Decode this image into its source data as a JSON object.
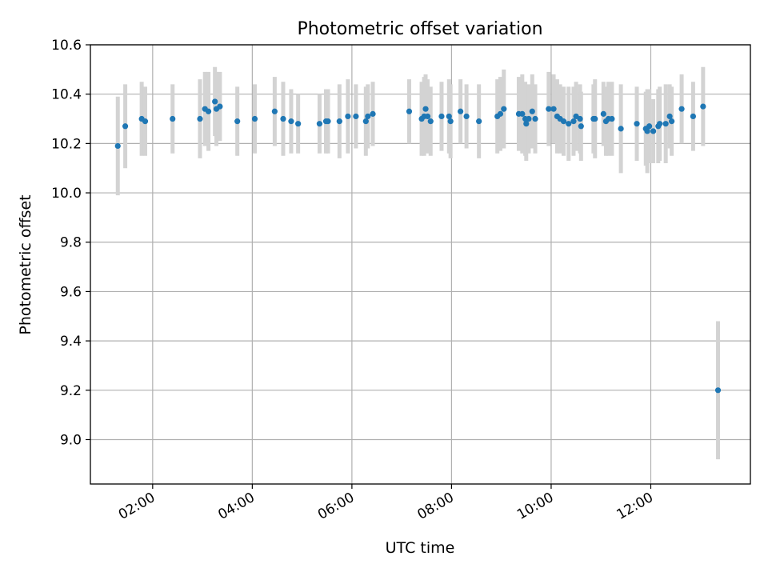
{
  "colors": {
    "point": "#1f77b4",
    "errorbar": "#d3d3d3",
    "grid": "#b0b0b0",
    "axis": "#000000"
  },
  "chart_data": {
    "type": "scatter",
    "title": "Photometric offset variation",
    "xlabel": "UTC time",
    "ylabel": "Photometric offset",
    "xlim": [
      0.75,
      14.0
    ],
    "ylim": [
      8.82,
      10.6
    ],
    "x_ticks": [
      2,
      4,
      6,
      8,
      10,
      12
    ],
    "x_tick_labels": [
      "02:00",
      "04:00",
      "06:00",
      "08:00",
      "10:00",
      "12:00"
    ],
    "y_ticks": [
      9.0,
      9.2,
      9.4,
      9.6,
      9.8,
      10.0,
      10.2,
      10.4,
      10.6
    ],
    "y_tick_labels": [
      "9.0",
      "9.2",
      "9.4",
      "9.6",
      "9.8",
      "10.0",
      "10.2",
      "10.4",
      "10.6"
    ],
    "grid": true,
    "series": [
      {
        "name": "Photometric offset",
        "x_unit": "hours UTC",
        "points": [
          [
            1.3,
            10.19,
            0.2
          ],
          [
            1.45,
            10.27,
            0.17
          ],
          [
            1.78,
            10.3,
            0.15
          ],
          [
            1.85,
            10.29,
            0.14
          ],
          [
            2.4,
            10.3,
            0.14
          ],
          [
            2.95,
            10.3,
            0.16
          ],
          [
            3.05,
            10.34,
            0.15
          ],
          [
            3.12,
            10.33,
            0.16
          ],
          [
            3.25,
            10.37,
            0.14
          ],
          [
            3.28,
            10.34,
            0.15
          ],
          [
            3.35,
            10.35,
            0.14
          ],
          [
            3.7,
            10.29,
            0.14
          ],
          [
            4.05,
            10.3,
            0.14
          ],
          [
            4.45,
            10.33,
            0.14
          ],
          [
            4.62,
            10.3,
            0.15
          ],
          [
            4.78,
            10.29,
            0.13
          ],
          [
            4.92,
            10.28,
            0.12
          ],
          [
            5.35,
            10.28,
            0.12
          ],
          [
            5.48,
            10.29,
            0.13
          ],
          [
            5.52,
            10.29,
            0.13
          ],
          [
            5.75,
            10.29,
            0.15
          ],
          [
            5.92,
            10.31,
            0.15
          ],
          [
            6.08,
            10.31,
            0.13
          ],
          [
            6.28,
            10.29,
            0.14
          ],
          [
            6.32,
            10.31,
            0.13
          ],
          [
            6.42,
            10.32,
            0.13
          ],
          [
            7.15,
            10.33,
            0.13
          ],
          [
            7.4,
            10.3,
            0.15
          ],
          [
            7.45,
            10.31,
            0.16
          ],
          [
            7.48,
            10.34,
            0.14
          ],
          [
            7.52,
            10.31,
            0.15
          ],
          [
            7.58,
            10.29,
            0.14
          ],
          [
            7.8,
            10.31,
            0.14
          ],
          [
            7.95,
            10.31,
            0.15
          ],
          [
            7.98,
            10.29,
            0.15
          ],
          [
            8.18,
            10.33,
            0.13
          ],
          [
            8.3,
            10.31,
            0.13
          ],
          [
            8.55,
            10.29,
            0.15
          ],
          [
            8.92,
            10.31,
            0.15
          ],
          [
            8.98,
            10.32,
            0.15
          ],
          [
            9.05,
            10.34,
            0.16
          ],
          [
            9.35,
            10.32,
            0.15
          ],
          [
            9.42,
            10.32,
            0.16
          ],
          [
            9.48,
            10.3,
            0.15
          ],
          [
            9.5,
            10.28,
            0.15
          ],
          [
            9.55,
            10.3,
            0.14
          ],
          [
            9.62,
            10.33,
            0.15
          ],
          [
            9.68,
            10.3,
            0.14
          ],
          [
            9.95,
            10.34,
            0.15
          ],
          [
            10.05,
            10.34,
            0.14
          ],
          [
            10.12,
            10.31,
            0.15
          ],
          [
            10.18,
            10.3,
            0.14
          ],
          [
            10.25,
            10.29,
            0.14
          ],
          [
            10.35,
            10.28,
            0.15
          ],
          [
            10.45,
            10.29,
            0.14
          ],
          [
            10.5,
            10.31,
            0.14
          ],
          [
            10.58,
            10.3,
            0.14
          ],
          [
            10.6,
            10.27,
            0.14
          ],
          [
            10.85,
            10.3,
            0.14
          ],
          [
            10.88,
            10.3,
            0.16
          ],
          [
            11.05,
            10.32,
            0.13
          ],
          [
            11.1,
            10.29,
            0.14
          ],
          [
            11.15,
            10.3,
            0.15
          ],
          [
            11.22,
            10.3,
            0.15
          ],
          [
            11.4,
            10.26,
            0.18
          ],
          [
            11.72,
            10.28,
            0.15
          ],
          [
            11.9,
            10.26,
            0.15
          ],
          [
            11.93,
            10.25,
            0.17
          ],
          [
            11.97,
            10.27,
            0.15
          ],
          [
            12.05,
            10.25,
            0.13
          ],
          [
            12.15,
            10.27,
            0.15
          ],
          [
            12.18,
            10.28,
            0.15
          ],
          [
            12.3,
            10.28,
            0.16
          ],
          [
            12.38,
            10.31,
            0.13
          ],
          [
            12.42,
            10.29,
            0.14
          ],
          [
            12.62,
            10.34,
            0.14
          ],
          [
            12.85,
            10.31,
            0.14
          ],
          [
            13.05,
            10.35,
            0.16
          ],
          [
            13.35,
            9.2,
            0.28
          ]
        ]
      }
    ]
  }
}
